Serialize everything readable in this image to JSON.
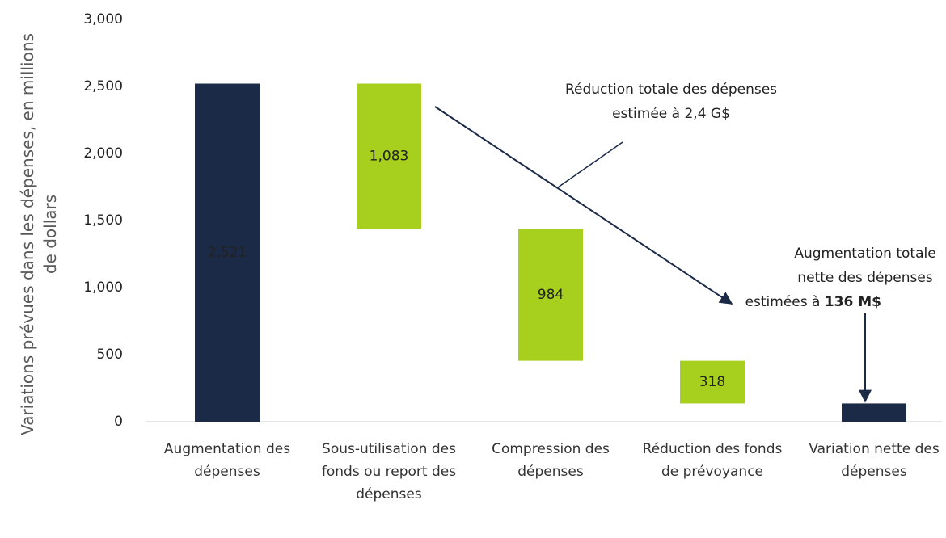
{
  "chart_data": {
    "type": "waterfall",
    "ylabel": "Variations prévues dans les dépenses, en millions de dollars",
    "categories": [
      "Augmentation des dépenses",
      "Sous-utilisation des fonds ou report des dépenses",
      "Compression des dépenses",
      "Réduction des fonds de prévoyance",
      "Variation nette des dépenses"
    ],
    "values": [
      2521,
      1083,
      984,
      318,
      136
    ],
    "value_labels": [
      "2,521",
      "1,083",
      "984",
      "318",
      null
    ],
    "measure": [
      "absolute",
      "decrease",
      "decrease",
      "decrease",
      "total"
    ],
    "colors": {
      "absolute": "#1b2a47",
      "decrease": "#a6cf1e",
      "total": "#1b2a47"
    },
    "ylim": [
      0,
      3000
    ],
    "yticks": [
      0,
      500,
      {
        "value": 1000,
        "label": "1,000"
      },
      {
        "value": 1500,
        "label": "1,500"
      },
      {
        "value": 2000,
        "label": "2,000"
      },
      {
        "value": 2500,
        "label": "2,500"
      },
      {
        "value": 3000,
        "label": "3,000"
      }
    ],
    "annotations": [
      {
        "lines": [
          "Réduction totale des dépenses",
          "estimée à 2,4 G$"
        ]
      },
      {
        "lines": [
          "Augmentation totale",
          "nette des dépenses",
          "estimées à "
        ],
        "bold": "136 M$"
      }
    ]
  }
}
